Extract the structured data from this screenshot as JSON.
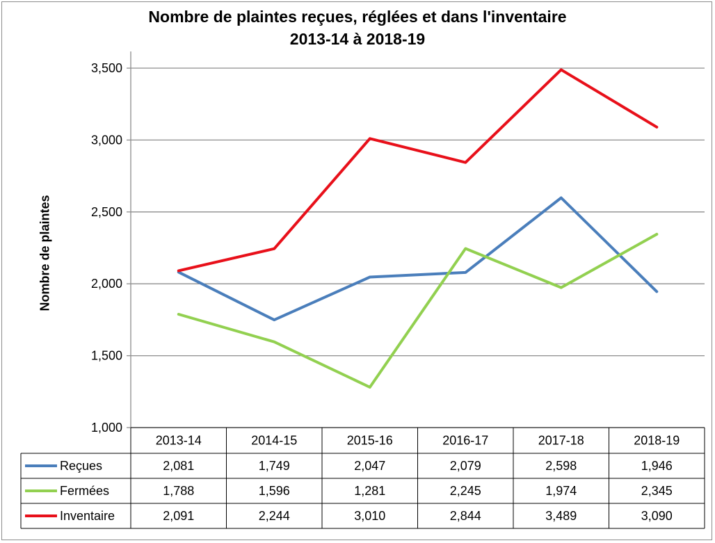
{
  "chart_data": {
    "type": "line",
    "title_line1": "Nombre de plaintes reçues, réglées et dans l'inventaire",
    "title_line2": "2013-14  à 2018-19",
    "ylabel": "Nombre de plaintes",
    "xlabel": "",
    "categories": [
      "2013-14",
      "2014-15",
      "2015-16",
      "2016-17",
      "2017-18",
      "2018-19"
    ],
    "ylim": [
      1000,
      3500
    ],
    "yticks": [
      1000,
      1500,
      2000,
      2500,
      3000,
      3500
    ],
    "ytick_labels": [
      "1,000",
      "1,500",
      "2,000",
      "2,500",
      "3,000",
      "3,500"
    ],
    "grid": true,
    "legend": "data-table",
    "series": [
      {
        "name": "Reçues",
        "color": "#4a7ebb",
        "values": [
          2081,
          1749,
          2047,
          2079,
          2598,
          1946
        ],
        "labels": [
          "2,081",
          "1,749",
          "2,047",
          "2,079",
          "2,598",
          "1,946"
        ]
      },
      {
        "name": "Fermées",
        "color": "#92d050",
        "values": [
          1788,
          1596,
          1281,
          2245,
          1974,
          2345
        ],
        "labels": [
          "1,788",
          "1,596",
          "1,281",
          "2,245",
          "1,974",
          "2,345"
        ]
      },
      {
        "name": "Inventaire",
        "color": "#e8101a",
        "values": [
          2091,
          2244,
          3010,
          2844,
          3489,
          3090
        ],
        "labels": [
          "2,091",
          "2,244",
          "3,010",
          "2,844",
          "3,489",
          "3,090"
        ]
      }
    ]
  }
}
